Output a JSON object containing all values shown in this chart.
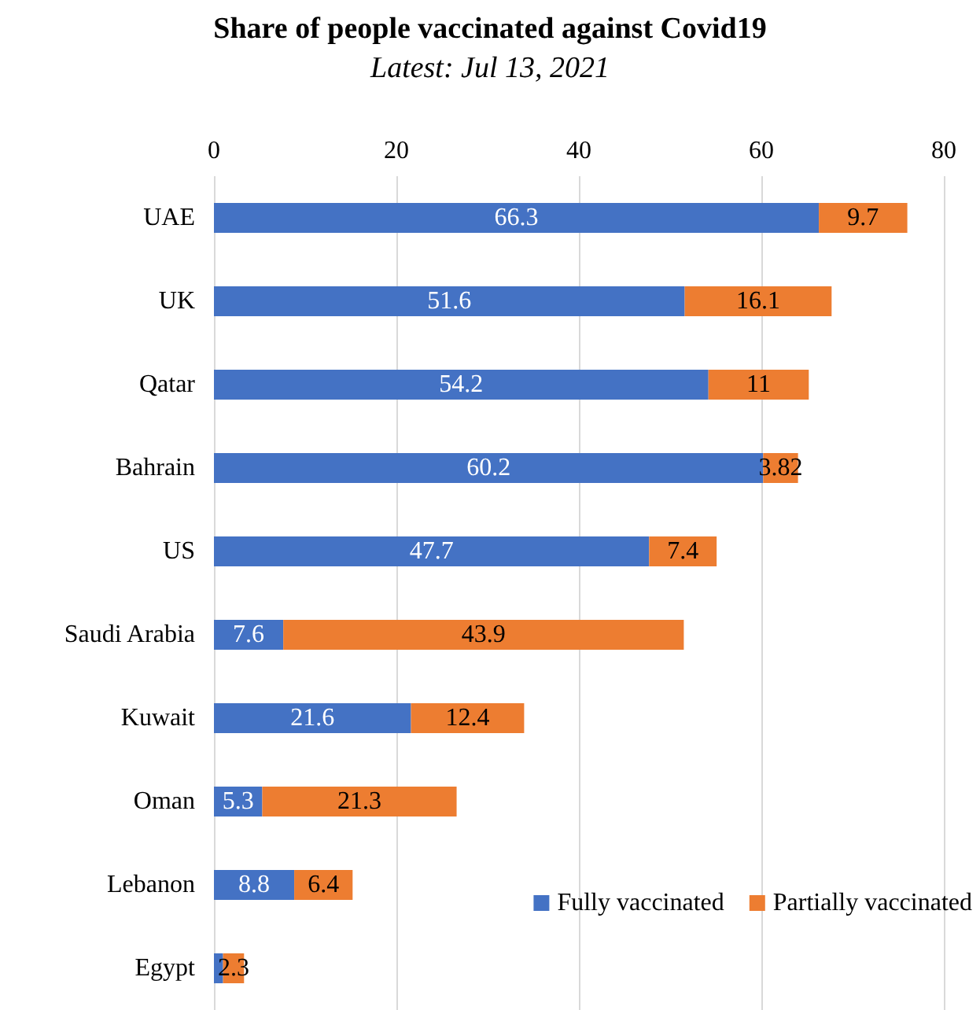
{
  "chart_data": {
    "type": "bar",
    "orientation": "horizontal",
    "stacked": true,
    "title": "Share of people vaccinated against Covid19",
    "subtitle": "Latest: Jul 13, 2021",
    "categories": [
      "UAE",
      "UK",
      "Qatar",
      "Bahrain",
      "US",
      "Saudi Arabia",
      "Kuwait",
      "Oman",
      "Lebanon",
      "Egypt"
    ],
    "series": [
      {
        "name": "Fully vaccinated",
        "color": "#4472c4",
        "values": [
          66.3,
          51.6,
          54.2,
          60.2,
          47.7,
          7.6,
          21.6,
          5.3,
          8.8,
          1.0
        ],
        "value_labels": [
          "66.3",
          "51.6",
          "54.2",
          "60.2",
          "47.7",
          "7.6",
          "21.6",
          "5.3",
          "8.8",
          null
        ]
      },
      {
        "name": "Partially vaccinated",
        "color": "#ed7d31",
        "values": [
          9.7,
          16.1,
          11,
          3.82,
          7.4,
          43.9,
          12.4,
          21.3,
          6.4,
          2.3
        ],
        "value_labels": [
          "9.7",
          "16.1",
          "11",
          "3.82",
          "7.4",
          "43.9",
          "12.4",
          "21.3",
          "6.4",
          "2.3"
        ]
      }
    ],
    "xlim": [
      0,
      80
    ],
    "xticks": [
      0,
      20,
      40,
      60,
      80
    ],
    "grid": "x",
    "legend": "bottom right"
  }
}
